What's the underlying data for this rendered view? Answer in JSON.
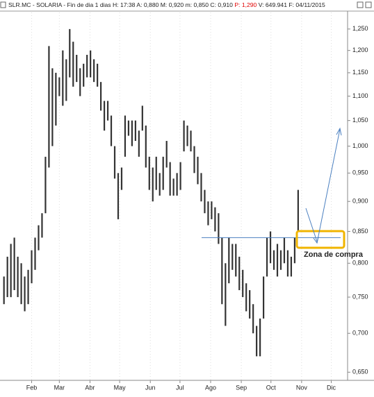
{
  "chart_data": {
    "type": "range",
    "title_parts": [
      "SLR.MC - SOLARIA - Fin de dia 1 dias H: 17:38 A: 0,880 M: 0,920 m: 0,850 C: 0,910 ",
      "P: 1,290",
      " V: 649.941 F: 04/11/2015"
    ],
    "annotation": "Zona de compra",
    "log_scale": true,
    "color": "#333333",
    "hline": 0.84,
    "x": [
      4,
      7.5,
      11,
      14.5,
      18,
      21.5,
      25,
      28.5,
      32,
      35.5,
      39,
      42.5,
      46,
      49.5,
      53,
      56.5,
      60,
      63.5,
      67,
      70.5,
      74,
      77.5,
      81,
      84.5,
      88,
      91.5,
      95,
      98.5,
      102,
      105.5,
      109,
      112.5,
      116,
      119.5,
      123,
      126.5,
      130,
      133.5,
      137,
      140.5,
      144,
      147.5,
      151,
      154.5,
      158,
      161.5,
      165,
      168.5,
      172,
      175.5,
      179,
      182.5,
      186,
      189.5,
      193,
      196.5,
      200,
      203.5,
      207,
      210.5,
      214,
      217.5,
      221,
      224.5,
      228,
      231.5,
      235,
      238.5,
      242,
      245.5,
      249,
      252.5,
      256,
      259.5,
      263,
      266.5,
      270,
      273.5,
      277,
      280.5,
      284,
      287.5,
      291,
      294.5,
      298,
      301.5
    ],
    "high": [
      0.78,
      0.81,
      0.83,
      0.84,
      0.81,
      0.8,
      0.78,
      0.79,
      0.82,
      0.84,
      0.86,
      0.88,
      0.98,
      1.21,
      1.16,
      1.15,
      1.14,
      1.2,
      1.18,
      1.25,
      1.22,
      1.19,
      1.16,
      1.17,
      1.19,
      1.2,
      1.18,
      1.17,
      1.13,
      1.09,
      1.09,
      1.06,
      1.0,
      0.95,
      0.96,
      1.06,
      1.05,
      1.05,
      1.05,
      1.03,
      1.08,
      1.04,
      0.98,
      0.96,
      0.98,
      0.95,
      0.98,
      1.01,
      0.97,
      0.94,
      0.95,
      0.97,
      1.05,
      1.04,
      1.03,
      1.0,
      0.98,
      0.95,
      0.92,
      0.9,
      0.9,
      0.89,
      0.88,
      0.84,
      0.8,
      0.84,
      0.83,
      0.83,
      0.81,
      0.79,
      0.77,
      0.76,
      0.74,
      0.71,
      0.72,
      0.78,
      0.84,
      0.85,
      0.82,
      0.83,
      0.82,
      0.84,
      0.82,
      0.81,
      0.84,
      0.92
    ],
    "low": [
      0.74,
      0.75,
      0.75,
      0.76,
      0.75,
      0.74,
      0.73,
      0.74,
      0.77,
      0.79,
      0.82,
      0.84,
      0.88,
      0.96,
      1.0,
      1.04,
      1.1,
      1.08,
      1.09,
      1.14,
      1.12,
      1.13,
      1.1,
      1.12,
      1.14,
      1.14,
      1.13,
      1.12,
      1.07,
      1.03,
      1.05,
      1.0,
      0.94,
      0.87,
      0.92,
      0.98,
      1.02,
      1.0,
      1.01,
      0.98,
      1.03,
      0.96,
      0.92,
      0.9,
      0.92,
      0.91,
      0.92,
      0.96,
      0.91,
      0.91,
      0.91,
      0.92,
      0.99,
      1.0,
      0.99,
      0.95,
      0.93,
      0.9,
      0.88,
      0.86,
      0.87,
      0.85,
      0.83,
      0.74,
      0.71,
      0.77,
      0.79,
      0.78,
      0.76,
      0.75,
      0.73,
      0.72,
      0.7,
      0.67,
      0.67,
      0.72,
      0.78,
      0.8,
      0.79,
      0.78,
      0.79,
      0.8,
      0.78,
      0.78,
      0.8,
      0.85
    ],
    "xlim": [
      0,
      351.5
    ],
    "xticks": [
      {
        "value": 32,
        "label": "Feb"
      },
      {
        "value": 60,
        "label": "Mar"
      },
      {
        "value": 91,
        "label": "Abr"
      },
      {
        "value": 121,
        "label": "May"
      },
      {
        "value": 152,
        "label": "Jun"
      },
      {
        "value": 182,
        "label": "Jul"
      },
      {
        "value": 213,
        "label": "Ago"
      },
      {
        "value": 244,
        "label": "Sep"
      },
      {
        "value": 274,
        "label": "Oct"
      },
      {
        "value": 305,
        "label": "Nov"
      },
      {
        "value": 335,
        "label": "Dic"
      }
    ],
    "ylim": [
      0.64,
      1.29
    ],
    "yticks": [
      {
        "value": 1.25,
        "label": "1,250"
      },
      {
        "value": 1.2,
        "label": "1,200"
      },
      {
        "value": 1.15,
        "label": "1,150"
      },
      {
        "value": 1.1,
        "label": "1,100"
      },
      {
        "value": 1.05,
        "label": "1,050"
      },
      {
        "value": 1.0,
        "label": "1,000"
      },
      {
        "value": 0.95,
        "label": "0,950"
      },
      {
        "value": 0.9,
        "label": "0,900"
      },
      {
        "value": 0.85,
        "label": "0,850"
      },
      {
        "value": 0.8,
        "label": "0,800"
      },
      {
        "value": 0.75,
        "label": "0,750"
      },
      {
        "value": 0.7,
        "label": "0,700"
      },
      {
        "value": 0.65,
        "label": "0,650"
      }
    ]
  }
}
